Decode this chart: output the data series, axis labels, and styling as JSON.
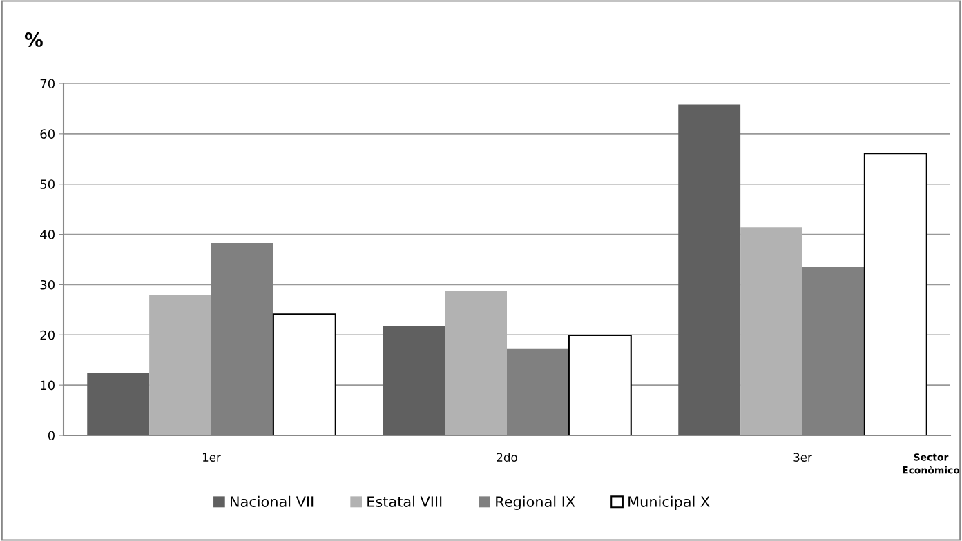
{
  "chart_data": {
    "type": "bar",
    "ylabel": "%",
    "xlabel": "Sector\nEconòmico",
    "categories": [
      "1er",
      "2do",
      "3er"
    ],
    "series": [
      {
        "name": "Nacional VII",
        "color": "#606060",
        "values": [
          12.4,
          21.8,
          65.8
        ]
      },
      {
        "name": "Estatal VIII",
        "color": "#b2b2b2",
        "values": [
          27.9,
          28.7,
          41.4
        ]
      },
      {
        "name": "Regional IX",
        "color": "#808080",
        "values": [
          38.3,
          17.2,
          33.5
        ]
      },
      {
        "name": "Municipal X",
        "color": "#ffffff",
        "values": [
          24.1,
          19.9,
          56.1
        ]
      }
    ],
    "ylim": [
      0,
      70
    ],
    "yticks": [
      0,
      10,
      20,
      30,
      40,
      50,
      60,
      70
    ],
    "grid": "y",
    "legend": "bottom"
  }
}
